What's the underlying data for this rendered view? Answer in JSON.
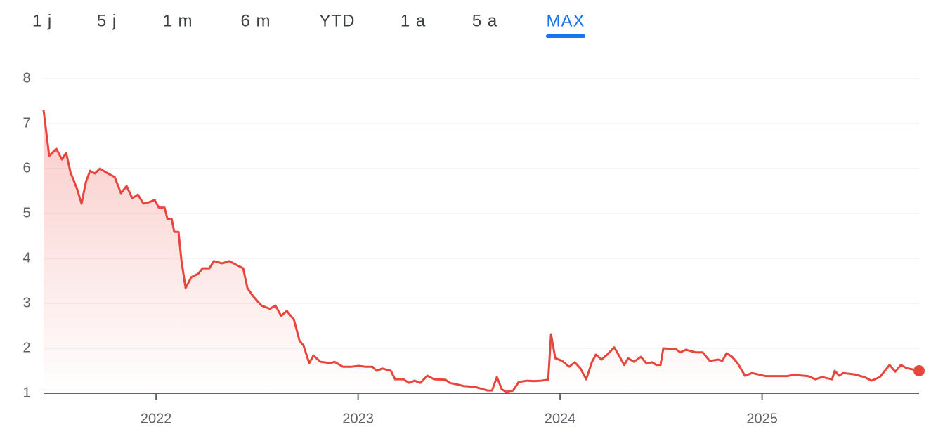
{
  "tabs": [
    "1 j",
    "5 j",
    "1 m",
    "6 m",
    "YTD",
    "1 a",
    "5 a",
    "MAX"
  ],
  "active_tab": 7,
  "chart_data": {
    "type": "area",
    "color": "#e8453c",
    "x": [
      2021.443,
      2021.471,
      2021.506,
      2021.534,
      2021.555,
      2021.576,
      2021.61,
      2021.631,
      2021.652,
      2021.673,
      2021.697,
      2021.722,
      2021.75,
      2021.795,
      2021.826,
      2021.854,
      2021.882,
      2021.91,
      2021.937,
      2021.965,
      2021.993,
      2022.014,
      2022.042,
      2022.056,
      2022.077,
      2022.09,
      2022.111,
      2022.125,
      2022.146,
      2022.174,
      2022.209,
      2022.23,
      2022.264,
      2022.285,
      2022.327,
      2022.362,
      2022.431,
      2022.452,
      2022.48,
      2022.522,
      2022.563,
      2022.591,
      2022.619,
      2022.647,
      2022.682,
      2022.71,
      2022.73,
      2022.758,
      2022.779,
      2022.814,
      2022.863,
      2022.883,
      2022.925,
      2022.967,
      2023.002,
      2023.037,
      2023.071,
      2023.092,
      2023.12,
      2023.162,
      2023.183,
      2023.224,
      2023.252,
      2023.28,
      2023.308,
      2023.343,
      2023.377,
      2023.433,
      2023.454,
      2023.496,
      2023.523,
      2023.579,
      2023.642,
      2023.663,
      2023.687,
      2023.711,
      2023.732,
      2023.767,
      2023.795,
      2023.837,
      2023.871,
      2023.906,
      2023.941,
      2023.955,
      2023.976,
      2024.01,
      2024.045,
      2024.073,
      2024.101,
      2024.129,
      2024.157,
      2024.177,
      2024.205,
      2024.233,
      2024.268,
      2024.289,
      2024.317,
      2024.337,
      2024.365,
      2024.4,
      2024.428,
      2024.456,
      2024.477,
      2024.497,
      2024.511,
      2024.574,
      2024.595,
      2024.623,
      2024.671,
      2024.706,
      2024.741,
      2024.783,
      2024.803,
      2024.824,
      2024.852,
      2024.88,
      2024.915,
      2024.95,
      2025.019,
      2025.054,
      2025.123,
      2025.158,
      2025.228,
      2025.263,
      2025.297,
      2025.346,
      2025.36,
      2025.381,
      2025.402,
      2025.457,
      2025.506,
      2025.541,
      2025.583,
      2025.631,
      2025.659,
      2025.687,
      2025.715,
      2025.777
    ],
    "values": [
      7.3,
      6.28,
      6.44,
      6.2,
      6.35,
      5.92,
      5.53,
      5.22,
      5.69,
      5.95,
      5.89,
      6.0,
      5.92,
      5.81,
      5.45,
      5.61,
      5.34,
      5.42,
      5.22,
      5.25,
      5.3,
      5.13,
      5.13,
      4.88,
      4.88,
      4.59,
      4.59,
      3.97,
      3.34,
      3.58,
      3.66,
      3.78,
      3.78,
      3.94,
      3.89,
      3.94,
      3.78,
      3.34,
      3.16,
      2.95,
      2.88,
      2.95,
      2.72,
      2.83,
      2.64,
      2.17,
      2.06,
      1.67,
      1.84,
      1.7,
      1.67,
      1.7,
      1.59,
      1.59,
      1.61,
      1.59,
      1.59,
      1.5,
      1.55,
      1.5,
      1.31,
      1.31,
      1.23,
      1.28,
      1.23,
      1.39,
      1.31,
      1.3,
      1.23,
      1.19,
      1.16,
      1.14,
      1.06,
      1.06,
      1.36,
      1.09,
      1.03,
      1.06,
      1.25,
      1.28,
      1.27,
      1.28,
      1.3,
      2.31,
      1.78,
      1.72,
      1.59,
      1.69,
      1.55,
      1.31,
      1.69,
      1.86,
      1.75,
      1.86,
      2.02,
      1.86,
      1.63,
      1.78,
      1.7,
      1.81,
      1.66,
      1.69,
      1.63,
      1.63,
      2.0,
      1.98,
      1.91,
      1.97,
      1.91,
      1.91,
      1.72,
      1.75,
      1.72,
      1.89,
      1.81,
      1.66,
      1.39,
      1.45,
      1.38,
      1.38,
      1.38,
      1.41,
      1.38,
      1.31,
      1.36,
      1.31,
      1.5,
      1.39,
      1.45,
      1.42,
      1.36,
      1.28,
      1.36,
      1.63,
      1.48,
      1.63,
      1.56,
      1.5
    ],
    "xlim": [
      2021.443,
      2025.777
    ],
    "xticks": [
      2022,
      2023,
      2024,
      2025
    ],
    "ylim": [
      1,
      8
    ],
    "yticks": [
      1,
      2,
      3,
      4,
      5,
      6,
      7,
      8
    ],
    "grid": true
  }
}
